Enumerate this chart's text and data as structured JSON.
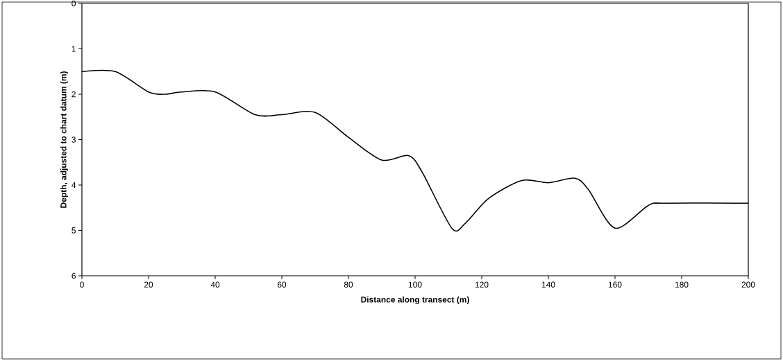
{
  "chart_data": {
    "type": "line",
    "xlabel": "Distance along transect (m)",
    "ylabel": "Depth, adjusted to chart datum (m)",
    "x": [
      0,
      10,
      20,
      25,
      30,
      40,
      52,
      60,
      70,
      80,
      90,
      98,
      102,
      111,
      115,
      122,
      132,
      140,
      148,
      152,
      160,
      170,
      175,
      200
    ],
    "values": [
      1.5,
      1.5,
      1.95,
      2.0,
      1.95,
      1.95,
      2.45,
      2.45,
      2.4,
      2.95,
      3.45,
      3.35,
      3.7,
      4.95,
      4.85,
      4.3,
      3.9,
      3.95,
      3.85,
      4.1,
      4.95,
      4.45,
      4.4,
      4.4
    ],
    "color": "#000000",
    "xlim": [
      0,
      200
    ],
    "xticks": [
      0,
      20,
      40,
      60,
      80,
      100,
      120,
      140,
      160,
      180,
      200
    ],
    "ylim": [
      6,
      0
    ],
    "yticks": [
      0,
      1,
      2,
      3,
      4,
      5,
      6
    ],
    "grid": false,
    "marker": "none",
    "line_style": "solid"
  }
}
